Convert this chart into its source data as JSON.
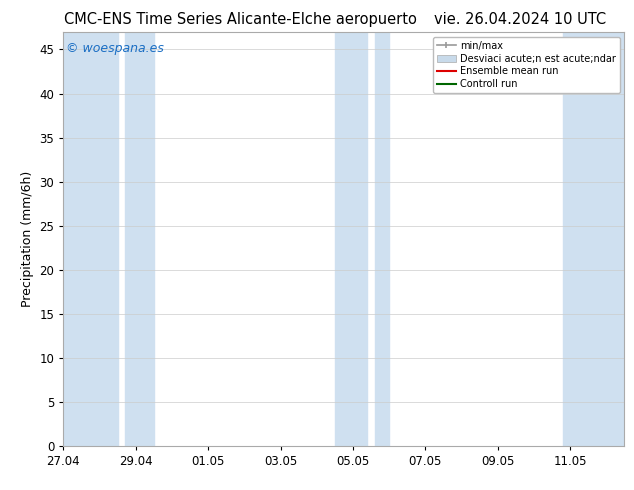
{
  "title_left": "CMC-ENS Time Series Alicante-Elche aeropuerto",
  "title_right": "vie. 26.04.2024 10 UTC",
  "ylabel": "Precipitation (mm/6h)",
  "watermark": "© woespana.es",
  "ylim": [
    0,
    47
  ],
  "yticks": [
    0,
    5,
    10,
    15,
    20,
    25,
    30,
    35,
    40,
    45
  ],
  "background_color": "#ffffff",
  "plot_bg_color": "#ffffff",
  "shaded_band_color": "#cfe0f0",
  "legend_minmax_color": "#999999",
  "legend_std_color": "#c8daea",
  "legend_ensemble_color": "#dd0000",
  "legend_control_color": "#006600",
  "title_fontsize": 10.5,
  "tick_fontsize": 8.5,
  "label_fontsize": 9,
  "watermark_fontsize": 9,
  "x_tick_labels": [
    "27.04",
    "29.04",
    "01.05",
    "03.05",
    "05.05",
    "07.05",
    "09.05",
    "11.05"
  ],
  "x_tick_positions": [
    0,
    2,
    4,
    6,
    8,
    10,
    12,
    14
  ],
  "x_lim": [
    0,
    15.5
  ],
  "legend_label1": "min/max",
  "legend_label2": "Desviaci acute;n est acute;ndar",
  "legend_label3": "Ensemble mean run",
  "legend_label4": "Controll run",
  "shaded_regions": [
    [
      -0.1,
      1.5
    ],
    [
      1.7,
      2.5
    ],
    [
      7.5,
      8.4
    ],
    [
      8.6,
      9.0
    ],
    [
      13.8,
      15.6
    ]
  ]
}
